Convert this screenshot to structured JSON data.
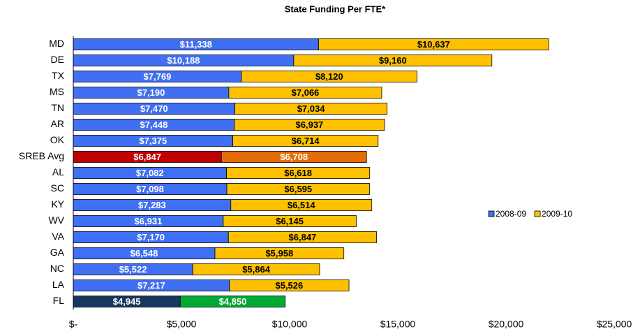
{
  "chart_data": {
    "type": "stacked-barh",
    "title": "State Funding Per FTE*",
    "categories": [
      "MD",
      "DE",
      "TX",
      "MS",
      "TN",
      "AR",
      "OK",
      "SREB Avg",
      "AL",
      "SC",
      "KY",
      "WV",
      "VA",
      "GA",
      "NC",
      "LA",
      "FL"
    ],
    "series": [
      {
        "name": "2008-09",
        "color": "#3f6ff2",
        "colors": [
          "#3f6ff2",
          "#3f6ff2",
          "#3f6ff2",
          "#3f6ff2",
          "#3f6ff2",
          "#3f6ff2",
          "#3f6ff2",
          "#c00000",
          "#3f6ff2",
          "#3f6ff2",
          "#3f6ff2",
          "#3f6ff2",
          "#3f6ff2",
          "#3f6ff2",
          "#3f6ff2",
          "#3f6ff2",
          "#17375e"
        ],
        "values": [
          11338,
          10188,
          7769,
          7190,
          7470,
          7448,
          7375,
          6847,
          7082,
          7098,
          7283,
          6931,
          7170,
          6548,
          5522,
          7217,
          4945
        ],
        "value_labels": [
          "$11,338",
          "$10,188",
          "$7,769",
          "$7,190",
          "$7,470",
          "$7,448",
          "$7,375",
          "$6,847",
          "$7,082",
          "$7,098",
          "$7,283",
          "$6,931",
          "$7,170",
          "$6,548",
          "$5,522",
          "$7,217",
          "$4,945"
        ]
      },
      {
        "name": "2009-10",
        "color": "#ffc000",
        "colors": [
          "#ffc000",
          "#ffc000",
          "#ffc000",
          "#ffc000",
          "#ffc000",
          "#ffc000",
          "#ffc000",
          "#e46c0a",
          "#ffc000",
          "#ffc000",
          "#ffc000",
          "#ffc000",
          "#ffc000",
          "#ffc000",
          "#ffc000",
          "#ffc000",
          "#00a933"
        ],
        "values": [
          10637,
          9160,
          8120,
          7066,
          7034,
          6937,
          6714,
          6708,
          6618,
          6595,
          6514,
          6145,
          6847,
          5958,
          5864,
          5526,
          4850
        ],
        "value_labels": [
          "$10,637",
          "$9,160",
          "$8,120",
          "$7,066",
          "$7,034",
          "$6,937",
          "$6,714",
          "$6,708",
          "$6,618",
          "$6,595",
          "$6,514",
          "$6,145",
          "$6,847",
          "$5,958",
          "$5,864",
          "$5,526",
          "$4,850"
        ]
      }
    ],
    "xlim": [
      0,
      25000
    ],
    "xticks": [
      {
        "value": 0,
        "label": "$-"
      },
      {
        "value": 5000,
        "label": "$5,000"
      },
      {
        "value": 10000,
        "label": "$10,000"
      },
      {
        "value": 15000,
        "label": "$15,000"
      },
      {
        "value": 20000,
        "label": "$20,000"
      },
      {
        "value": 25000,
        "label": "$25,000"
      }
    ],
    "legend": "right"
  }
}
